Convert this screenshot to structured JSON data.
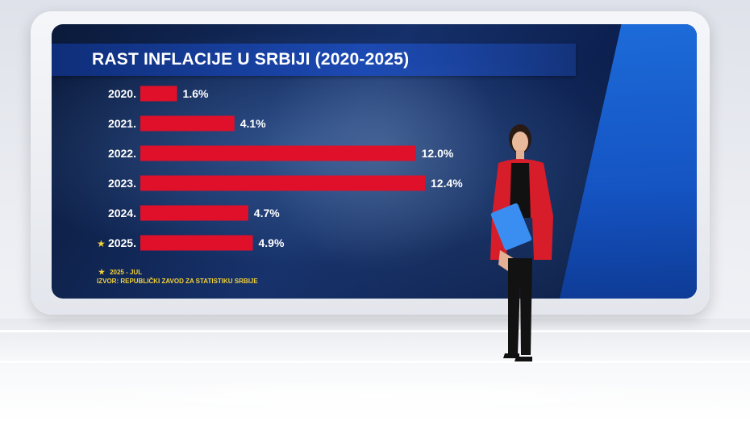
{
  "chart_data": {
    "type": "bar",
    "orientation": "horizontal",
    "title": "RAST INFLACIJE U SRBIJI (2020-2025)",
    "categories": [
      "2020.",
      "2021.",
      "2022.",
      "2023.",
      "2024.",
      "2025."
    ],
    "values": [
      1.6,
      4.1,
      12.0,
      12.4,
      4.7,
      4.9
    ],
    "value_labels": [
      "1.6%",
      "4.1%",
      "12.0%",
      "12.4%",
      "4.7%",
      "4.9%"
    ],
    "starred_category": "2025.",
    "xlim": [
      0,
      12.4
    ],
    "grid": false,
    "bar_color": "#e0102a"
  },
  "footnote": {
    "marker": "★",
    "text": "2025 - JUL",
    "source": "IZVOR: REPUBLIČKI ZAVOD ZA STATISTIKU SRBIJE"
  },
  "colors": {
    "accent_blue": "#1556c9",
    "note_yellow": "#f3d23a",
    "presenter_jacket": "#d81d2a"
  }
}
